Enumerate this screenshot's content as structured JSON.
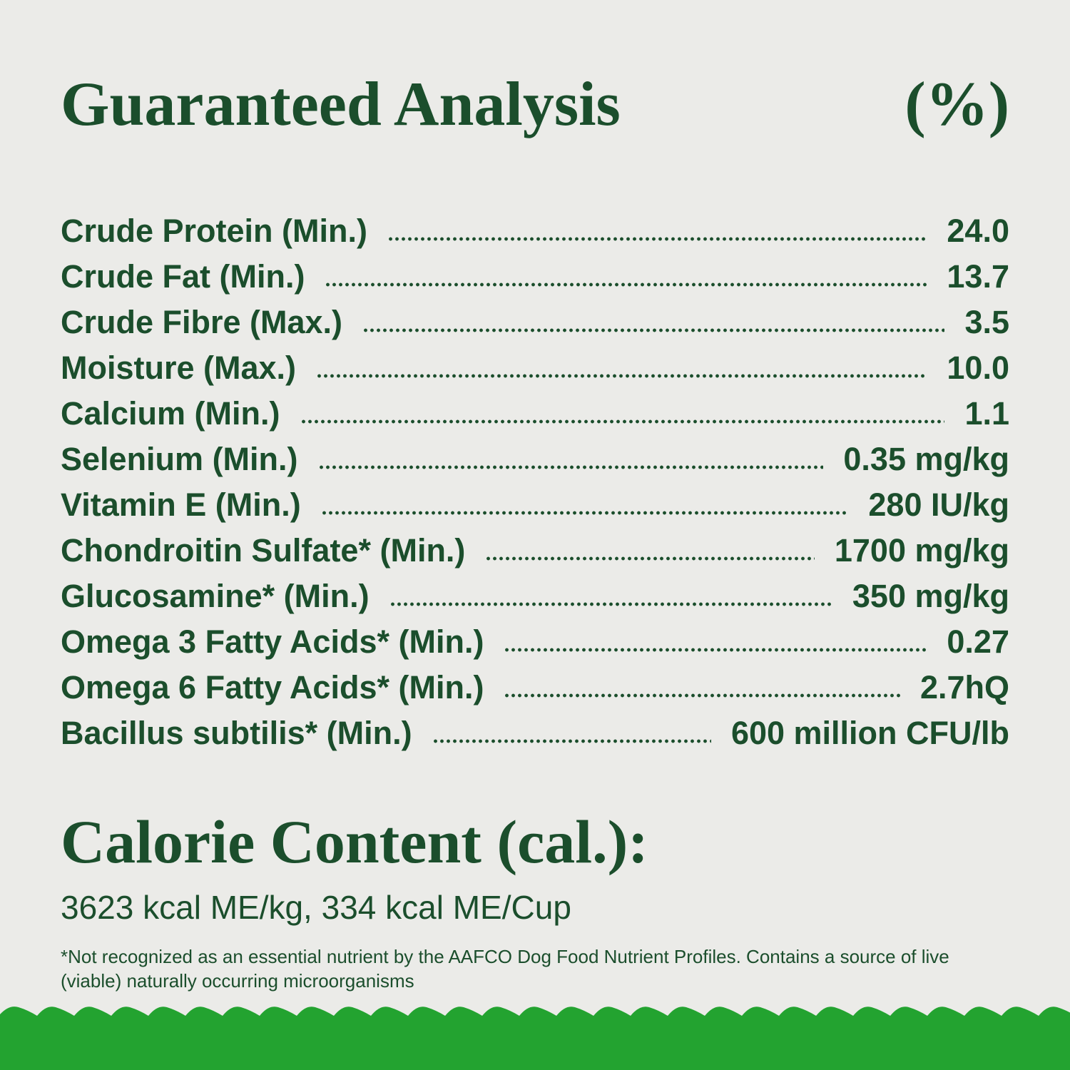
{
  "header": {
    "title": "Guaranteed Analysis",
    "unit": "(%)"
  },
  "table": {
    "rows": [
      [
        "Crude Protein (Min.)",
        "24.0"
      ],
      [
        "Crude Fat (Min.)",
        "13.7"
      ],
      [
        "Crude Fibre (Max.)",
        "3.5"
      ],
      [
        "Moisture (Max.)",
        "10.0"
      ],
      [
        "Calcium (Min.)",
        "1.1"
      ],
      [
        "Selenium (Min.)",
        "0.35 mg/kg"
      ],
      [
        "Vitamin E (Min.)",
        "280 IU/kg"
      ],
      [
        "Chondroitin Sulfate* (Min.)",
        "1700 mg/kg"
      ],
      [
        "Glucosamine* (Min.)",
        "350 mg/kg"
      ],
      [
        "Omega 3 Fatty Acids* (Min.)",
        "0.27"
      ],
      [
        "Omega 6 Fatty Acids* (Min.)",
        "2.7hQ"
      ],
      [
        "Bacillus subtilis* (Min.)",
        "600 million CFU/lb"
      ]
    ]
  },
  "calorie": {
    "title": "Calorie Content (cal.):",
    "text": "3623 kcal ME/kg, 334 kcal ME/Cup"
  },
  "footnote": "*Not recognized as an essential nutrient by the AAFCO Dog Food Nutrient Profiles. Contains a source of live (viable) naturally occurring microorganisms"
}
